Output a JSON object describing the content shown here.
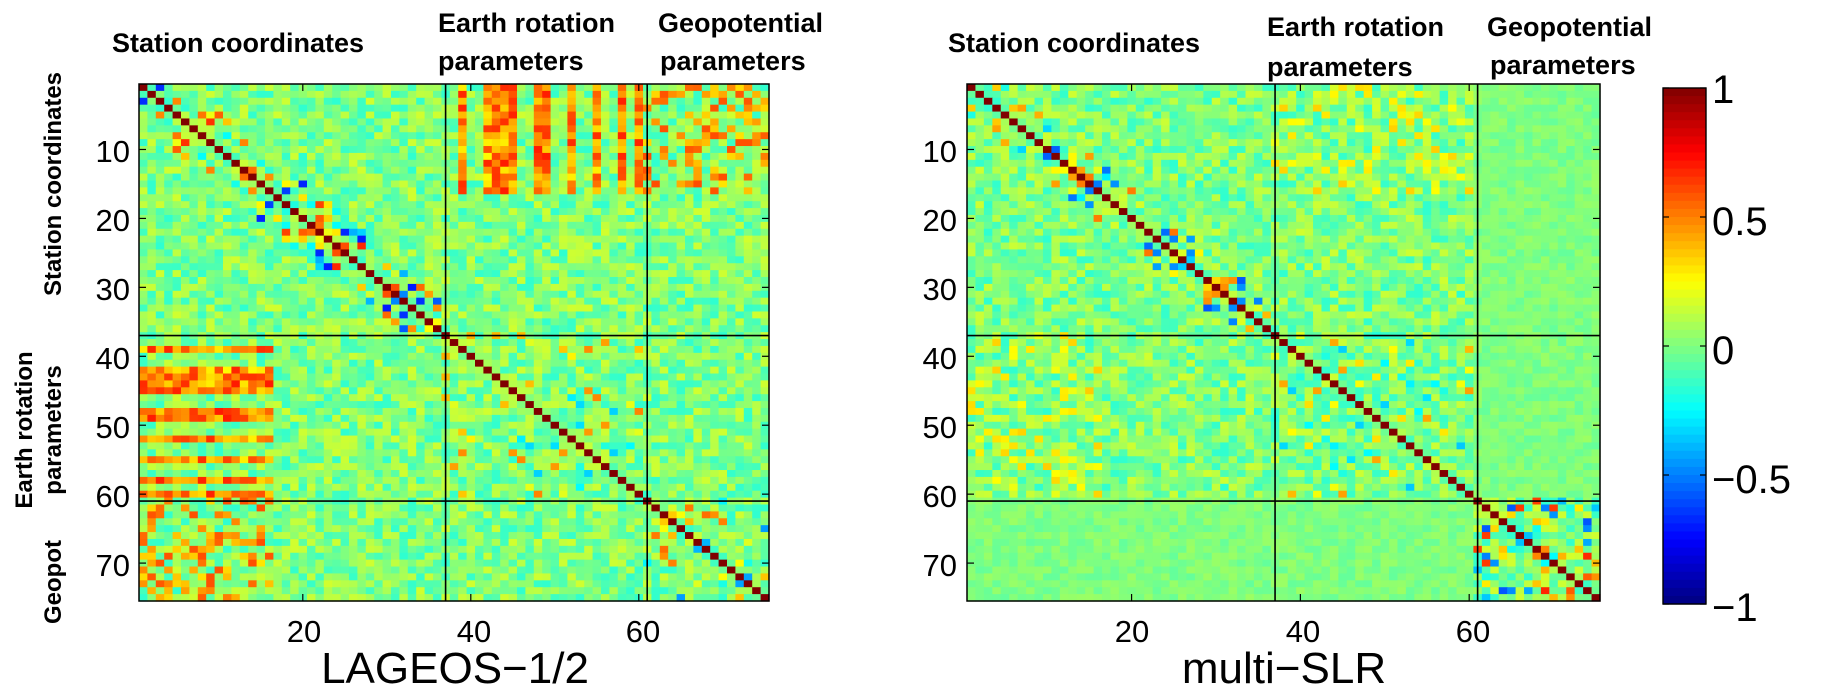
{
  "chart_data": [
    {
      "type": "heatmap",
      "title": "LAGEOS−1/2",
      "size": 75,
      "x_ticks": [
        20,
        40,
        60
      ],
      "y_ticks": [
        10,
        20,
        30,
        40,
        50,
        60,
        70
      ],
      "tick_labels_x": [
        "20",
        "40",
        "60"
      ],
      "tick_labels_y": [
        "10",
        "20",
        "30",
        "40",
        "50",
        "60",
        "70"
      ],
      "block_boundaries": [
        36.5,
        60.5
      ],
      "top_groups": [
        {
          "label_lines": [
            "Station coordinates"
          ]
        },
        {
          "label_lines": [
            "Earth rotation",
            "parameters"
          ]
        },
        {
          "label_lines": [
            "Geopotential",
            "parameters"
          ]
        }
      ],
      "left_groups": [
        {
          "label_lines": [
            "Station coordinates"
          ]
        },
        {
          "label_lines": [
            "Earth rotation",
            "parameters"
          ]
        },
        {
          "label_lines": [
            "Geopot"
          ]
        }
      ],
      "seed": 11
    },
    {
      "type": "heatmap",
      "title": "multi−SLR",
      "size": 75,
      "x_ticks": [
        20,
        40,
        60
      ],
      "y_ticks": [
        10,
        20,
        30,
        40,
        50,
        60,
        70
      ],
      "tick_labels_x": [
        "20",
        "40",
        "60"
      ],
      "tick_labels_y": [
        "10",
        "20",
        "30",
        "40",
        "50",
        "60",
        "70"
      ],
      "block_boundaries": [
        36.5,
        60.5
      ],
      "top_groups": [
        {
          "label_lines": [
            "Station coordinates"
          ]
        },
        {
          "label_lines": [
            "Earth rotation",
            "parameters"
          ]
        },
        {
          "label_lines": [
            "Geopotential",
            "parameters"
          ]
        }
      ],
      "seed": 29
    }
  ],
  "colorbar": {
    "colormap": "jet",
    "range": [
      -1,
      1
    ],
    "tick_values": [
      1,
      0.5,
      0,
      -0.5,
      -1
    ],
    "tick_labels": [
      "1",
      "0.5",
      "0",
      "−0.5",
      "−1"
    ]
  },
  "colors": {
    "grid_line": "#000000",
    "diagonal": "#800000"
  }
}
